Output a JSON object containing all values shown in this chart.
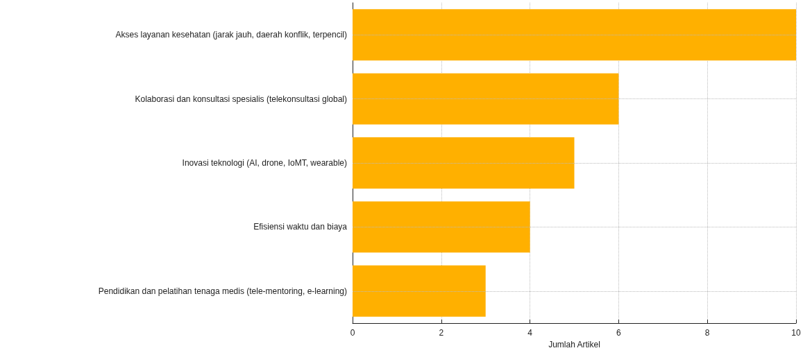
{
  "chart_data": {
    "type": "bar",
    "orientation": "horizontal",
    "xlabel": "Jumlah Artikel",
    "categories": [
      "Akses layanan kesehatan (jarak jauh, daerah konflik, terpencil)",
      "Kolaborasi dan konsultasi spesialis (telekonsultasi global)",
      "Inovasi teknologi (AI, drone, IoMT, wearable)",
      "Efisiensi waktu dan biaya",
      "Pendidikan dan pelatihan tenaga medis (tele-mentoring, e-learning)"
    ],
    "values": [
      10,
      6,
      5,
      4,
      3
    ],
    "color": "#ffb000",
    "xlim": [
      0,
      10
    ],
    "xticks": [
      0,
      2,
      4,
      6,
      8,
      10
    ],
    "grid": true
  }
}
